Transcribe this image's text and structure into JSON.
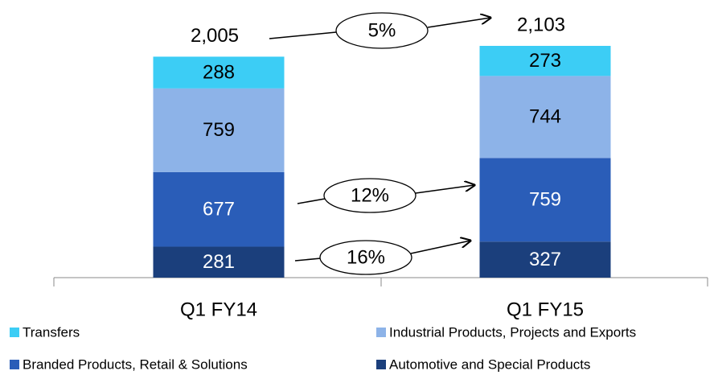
{
  "chart_data": {
    "type": "stacked_bar",
    "categories": [
      "Q1 FY14",
      "Q1 FY15"
    ],
    "series": [
      {
        "name": "Transfers",
        "color": "#3ccdf5",
        "label_color": "#000000",
        "values": [
          288,
          273
        ]
      },
      {
        "name": "Industrial Products, Projects and Exports",
        "color": "#8db3e8",
        "label_color": "#000000",
        "values": [
          759,
          744
        ]
      },
      {
        "name": "Branded Products, Retail & Solutions",
        "color": "#2a5db8",
        "label_color": "#ffffff",
        "values": [
          677,
          759
        ]
      },
      {
        "name": "Automotive and Special Products",
        "color": "#1b3f7c",
        "label_color": "#ffffff",
        "values": [
          281,
          327
        ]
      }
    ],
    "totals": [
      2005,
      2103
    ],
    "total_labels": [
      "2,005",
      "2,103"
    ],
    "annotations": [
      "5%",
      "12%",
      "16%"
    ]
  }
}
